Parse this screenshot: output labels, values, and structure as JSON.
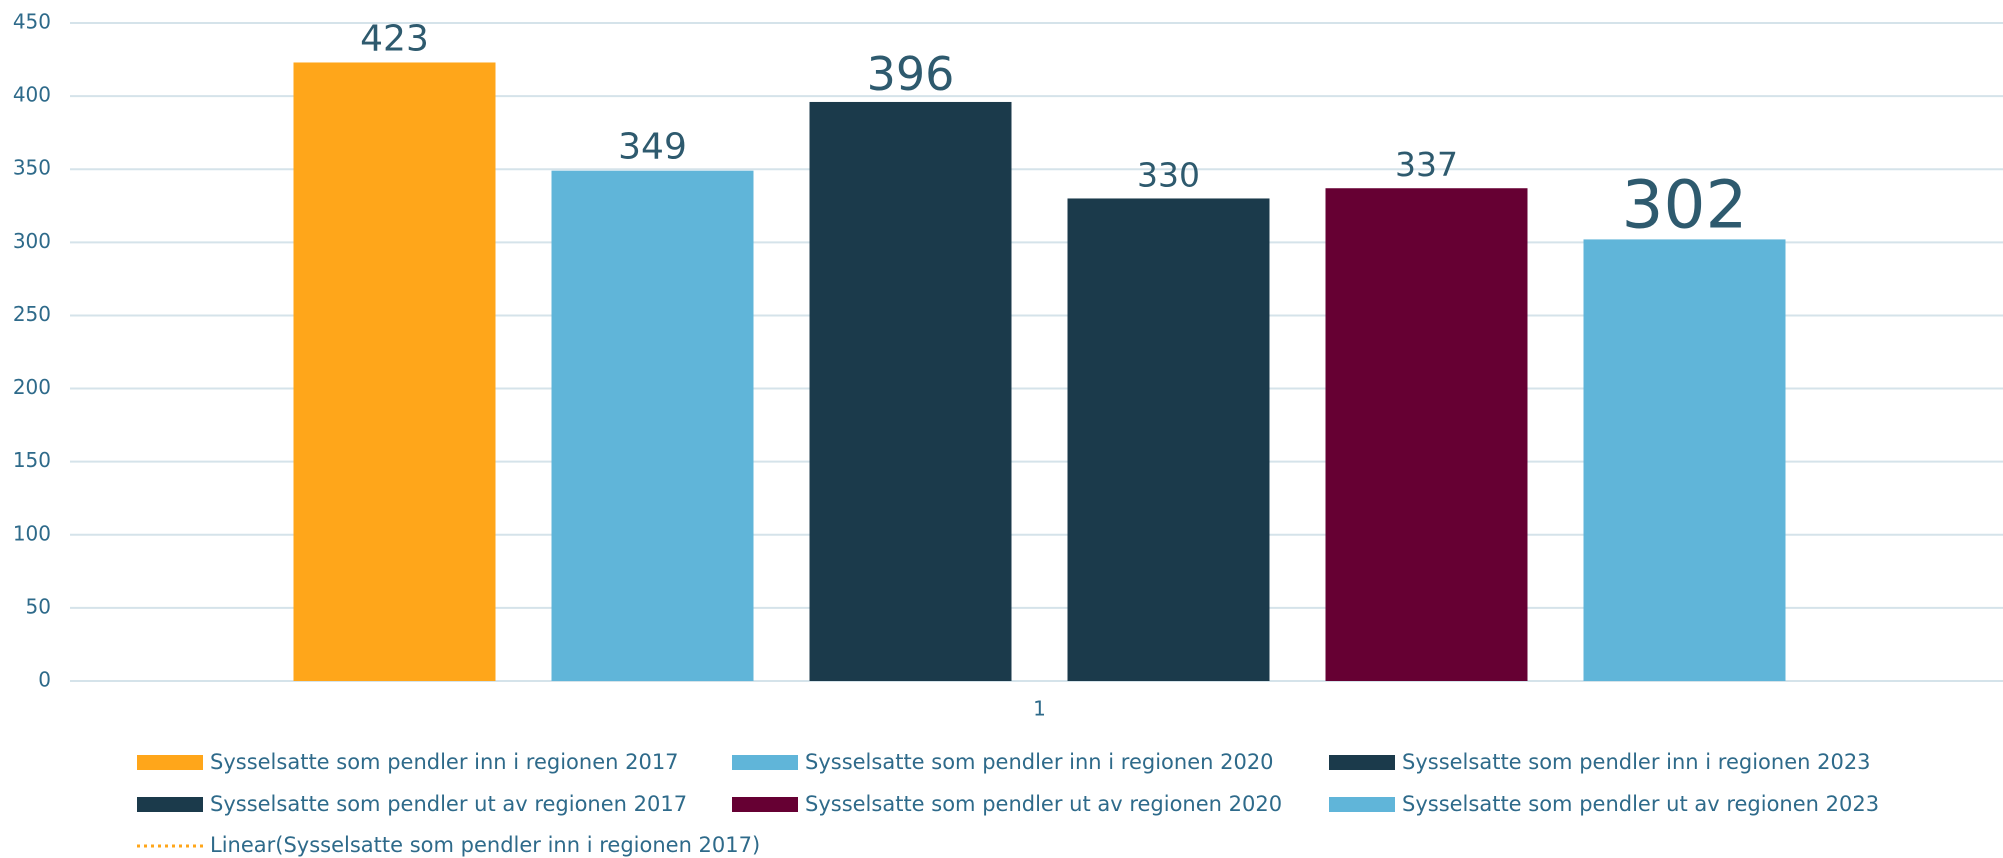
{
  "chart_data": {
    "type": "bar",
    "categories": [
      "1"
    ],
    "series": [
      {
        "name": "Sysselsatte som pendler inn i regionen 2017",
        "color": "#FFA61A",
        "values": [
          423
        ]
      },
      {
        "name": "Sysselsatte som pendler inn i regionen 2020",
        "color": "#60B5D9",
        "values": [
          349
        ]
      },
      {
        "name": "Sysselsatte som pendler inn i regionen 2023",
        "color": "#1B3A4B",
        "values": [
          396
        ]
      },
      {
        "name": "Sysselsatte som pendler ut av regionen 2017",
        "color": "#1B3A4B",
        "values": [
          330
        ]
      },
      {
        "name": "Sysselsatte som pendler ut av regionen 2020",
        "color": "#660033",
        "values": [
          337
        ]
      },
      {
        "name": "Sysselsatte som pendler ut av regionen 2023",
        "color": "#60B5D9",
        "values": [
          302
        ]
      }
    ],
    "trendline": {
      "name": "Linear(Sysselsatte som pendler inn i regionen 2017)",
      "color": "#FFA61A"
    },
    "ylim": [
      0,
      450
    ],
    "yticks": [
      0,
      50,
      100,
      150,
      200,
      250,
      300,
      350,
      400,
      450
    ],
    "grid": true
  }
}
